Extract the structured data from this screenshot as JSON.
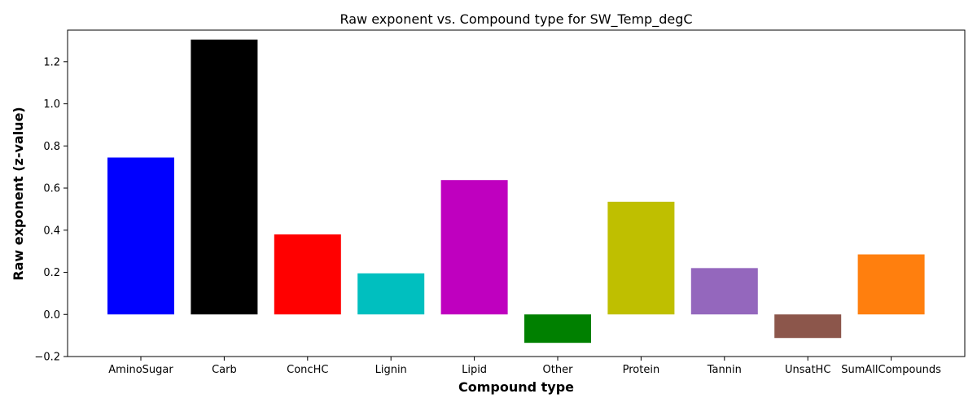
{
  "chart_data": {
    "type": "bar",
    "title": "Raw exponent vs. Compound type for SW_Temp_degC",
    "xlabel": "Compound type",
    "ylabel": "Raw exponent (z-value)",
    "ylim": [
      -0.2,
      1.35
    ],
    "yticks": [
      -0.2,
      0.0,
      0.2,
      0.4,
      0.6,
      0.8,
      1.0,
      1.2
    ],
    "ytick_labels": [
      "−0.2",
      "0.0",
      "0.2",
      "0.4",
      "0.6",
      "0.8",
      "1.0",
      "1.2"
    ],
    "grid": false,
    "categories": [
      "AminoSugar",
      "Carb",
      "ConcHC",
      "Lignin",
      "Lipid",
      "Other",
      "Protein",
      "Tannin",
      "UnsatHC",
      "SumAllCompounds"
    ],
    "values": [
      0.745,
      1.305,
      0.38,
      0.195,
      0.638,
      -0.135,
      0.535,
      0.22,
      -0.112,
      0.285
    ],
    "colors": [
      "#0000ff",
      "#000000",
      "#ff0000",
      "#00bfbf",
      "#bf00bf",
      "#008000",
      "#bfbf00",
      "#9467bd",
      "#8c564b",
      "#ff7f0e"
    ]
  }
}
